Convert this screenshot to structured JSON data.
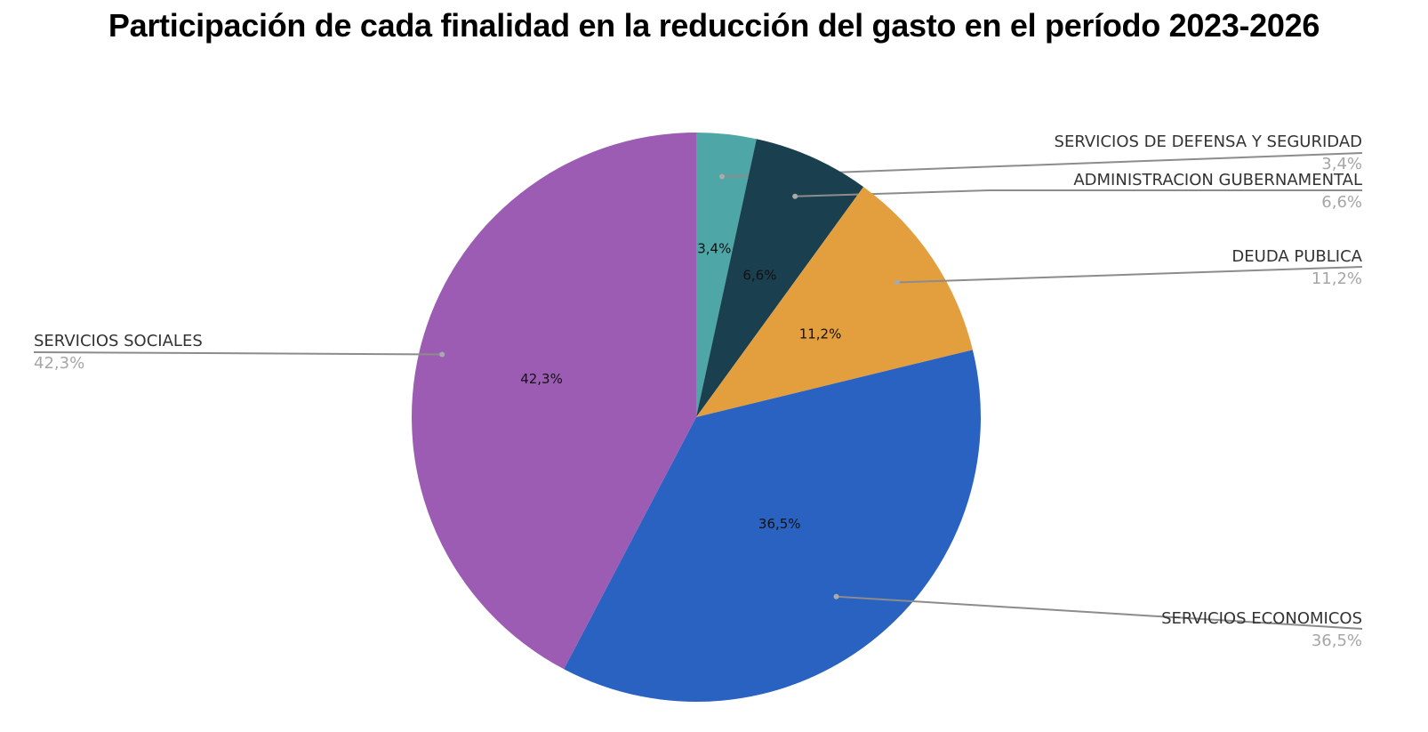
{
  "title": "Participación de cada finalidad en la reducción del gasto en el período 2023-2026",
  "chart_data": {
    "type": "pie",
    "title": "Participación de cada finalidad en la reducción del gasto en el período 2023-2026",
    "start_angle": "top, clockwise",
    "slices": [
      {
        "label": "SERVICIOS DE DEFENSA Y SEGURIDAD",
        "value": 3.4,
        "display": "3,4%",
        "color": "#4ea6a6"
      },
      {
        "label": "ADMINISTRACION GUBERNAMENTAL",
        "value": 6.6,
        "display": "6,6%",
        "color": "#1a3f4f"
      },
      {
        "label": "DEUDA PUBLICA",
        "value": 11.2,
        "display": "11,2%",
        "color": "#e39e3e"
      },
      {
        "label": "SERVICIOS ECONOMICOS",
        "value": 36.5,
        "display": "36,5%",
        "color": "#2962c0"
      },
      {
        "label": "SERVICIOS SOCIALES",
        "value": 42.3,
        "display": "42,3%",
        "color": "#9c5cb4"
      }
    ],
    "legend_position": "callouts"
  }
}
